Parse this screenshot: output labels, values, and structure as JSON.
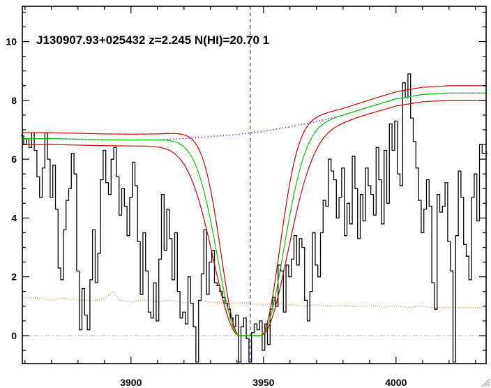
{
  "chart_data": {
    "type": "line",
    "title": "J130907.93+025432 z=2.245 N(HI)=20.70 1",
    "xlabel": "",
    "ylabel": "",
    "xlim": [
      3859,
      4034
    ],
    "ylim": [
      -0.95,
      11.2
    ],
    "x_ticks": [
      3900,
      3950,
      4000
    ],
    "y_ticks": [
      0,
      2,
      4,
      6,
      8,
      10
    ],
    "x_tick_labels": [
      "3900",
      "3950",
      "4000"
    ],
    "y_tick_labels": [
      "0",
      "2",
      "4",
      "6",
      "8",
      "10"
    ],
    "line_center_x": 3945,
    "grid": false,
    "legend": "none",
    "dla_fit": {
      "center": 3945,
      "core_halfwidth": 4,
      "width_central": 6.6,
      "width_low": 5.5,
      "width_high": 7.8,
      "continuum_scale": 1.0,
      "continuum_scale_upper": 1.03,
      "continuum_scale_lower": 0.97
    },
    "series": [
      {
        "style": "step",
        "color": "#000000",
        "points": [
          [
            3859,
            6.8
          ],
          [
            3860,
            6.5
          ],
          [
            3861,
            6.7
          ],
          [
            3862,
            6.4
          ],
          [
            3863,
            6.9
          ],
          [
            3864,
            6.3
          ],
          [
            3865,
            5.4
          ],
          [
            3866,
            4.7
          ],
          [
            3867,
            5.7
          ],
          [
            3868,
            6.9
          ],
          [
            3869,
            6.0
          ],
          [
            3870,
            4.7
          ],
          [
            3871,
            5.8
          ],
          [
            3872,
            4.3
          ],
          [
            3873,
            2.3
          ],
          [
            3874,
            1.9
          ],
          [
            3875,
            3.6
          ],
          [
            3876,
            4.6
          ],
          [
            3877,
            5.0
          ],
          [
            3878,
            6.2
          ],
          [
            3879,
            5.5
          ],
          [
            3880,
            2.2
          ],
          [
            3881,
            0.2
          ],
          [
            3882,
            1.6
          ],
          [
            3883,
            0.7
          ],
          [
            3884,
            0.2
          ],
          [
            3885,
            1.9
          ],
          [
            3886,
            3.6
          ],
          [
            3887,
            1.8
          ],
          [
            3888,
            2.8
          ],
          [
            3889,
            5.3
          ],
          [
            3890,
            6.3
          ],
          [
            3891,
            5.2
          ],
          [
            3892,
            4.8
          ],
          [
            3893,
            6.0
          ],
          [
            3894,
            6.4
          ],
          [
            3895,
            5.4
          ],
          [
            3896,
            4.1
          ],
          [
            3897,
            5.0
          ],
          [
            3898,
            4.4
          ],
          [
            3899,
            3.4
          ],
          [
            3900,
            4.7
          ],
          [
            3901,
            5.9
          ],
          [
            3902,
            5.1
          ],
          [
            3903,
            3.2
          ],
          [
            3904,
            1.4
          ],
          [
            3905,
            3.5
          ],
          [
            3906,
            2.2
          ],
          [
            3907,
            0.8
          ],
          [
            3908,
            0.6
          ],
          [
            3909,
            1.8
          ],
          [
            3910,
            0.5
          ],
          [
            3911,
            2.6
          ],
          [
            3912,
            4.8
          ],
          [
            3913,
            2.9
          ],
          [
            3914,
            4.3
          ],
          [
            3915,
            3.3
          ],
          [
            3916,
            1.9
          ],
          [
            3917,
            3.5
          ],
          [
            3918,
            1.5
          ],
          [
            3919,
            0.6
          ],
          [
            3920,
            0.8
          ],
          [
            3921,
            0.4
          ],
          [
            3922,
            2.0
          ],
          [
            3923,
            1.1
          ],
          [
            3924,
            0.3
          ],
          [
            3925,
            -0.9
          ],
          [
            3926,
            1.2
          ],
          [
            3927,
            2.1
          ],
          [
            3928,
            3.6
          ],
          [
            3929,
            1.4
          ],
          [
            3930,
            2.5
          ],
          [
            3931,
            2.9
          ],
          [
            3932,
            1.8
          ],
          [
            3933,
            1.7
          ],
          [
            3934,
            1.5
          ],
          [
            3935,
            1.3
          ],
          [
            3936,
            1.1
          ],
          [
            3937,
            0.9
          ],
          [
            3938,
            0.6
          ],
          [
            3939,
            0.3
          ],
          [
            3940,
            0.7
          ],
          [
            3941,
            -0.9
          ],
          [
            3942,
            0.3
          ],
          [
            3943,
            0.6
          ],
          [
            3944,
            -0.1
          ],
          [
            3945,
            -0.9
          ],
          [
            3946,
            0.1
          ],
          [
            3947,
            0.4
          ],
          [
            3948,
            0.2
          ],
          [
            3949,
            0.5
          ],
          [
            3950,
            -0.5
          ],
          [
            3951,
            0.4
          ],
          [
            3952,
            -0.3
          ],
          [
            3953,
            0.9
          ],
          [
            3954,
            1.3
          ],
          [
            3955,
            1.0
          ],
          [
            3956,
            2.4
          ],
          [
            3957,
            2.2
          ],
          [
            3958,
            0.8
          ],
          [
            3959,
            2.4
          ],
          [
            3960,
            2.0
          ],
          [
            3961,
            2.6
          ],
          [
            3962,
            3.4
          ],
          [
            3963,
            2.4
          ],
          [
            3964,
            3.3
          ],
          [
            3965,
            3.0
          ],
          [
            3966,
            1.2
          ],
          [
            3967,
            0.5
          ],
          [
            3968,
            1.5
          ],
          [
            3969,
            3.5
          ],
          [
            3970,
            2.4
          ],
          [
            3971,
            2.0
          ],
          [
            3972,
            3.5
          ],
          [
            3973,
            4.6
          ],
          [
            3974,
            4.4
          ],
          [
            3975,
            6.0
          ],
          [
            3976,
            5.6
          ],
          [
            3977,
            5.3
          ],
          [
            3978,
            4.0
          ],
          [
            3979,
            4.7
          ],
          [
            3980,
            5.7
          ],
          [
            3981,
            3.4
          ],
          [
            3982,
            4.5
          ],
          [
            3983,
            3.8
          ],
          [
            3984,
            6.1
          ],
          [
            3985,
            5.0
          ],
          [
            3986,
            3.3
          ],
          [
            3987,
            4.8
          ],
          [
            3988,
            3.9
          ],
          [
            3989,
            5.7
          ],
          [
            3990,
            5.1
          ],
          [
            3991,
            4.8
          ],
          [
            3992,
            4.1
          ],
          [
            3993,
            6.4
          ],
          [
            3994,
            5.3
          ],
          [
            3995,
            3.8
          ],
          [
            3996,
            6.3
          ],
          [
            3997,
            4.5
          ],
          [
            3998,
            7.2
          ],
          [
            3999,
            6.3
          ],
          [
            4000,
            7.3
          ],
          [
            4001,
            5.5
          ],
          [
            4002,
            5.1
          ],
          [
            4003,
            8.6
          ],
          [
            4004,
            8.1
          ],
          [
            4005,
            8.9
          ],
          [
            4006,
            7.4
          ],
          [
            4007,
            6.6
          ],
          [
            4008,
            5.7
          ],
          [
            4009,
            4.6
          ],
          [
            4010,
            3.5
          ],
          [
            4011,
            4.3
          ],
          [
            4012,
            5.3
          ],
          [
            4013,
            4.4
          ],
          [
            4014,
            1.8
          ],
          [
            4015,
            0.9
          ],
          [
            4016,
            4.8
          ],
          [
            4017,
            4.2
          ],
          [
            4018,
            4.4
          ],
          [
            4019,
            5.2
          ],
          [
            4020,
            3.2
          ],
          [
            4021,
            2.2
          ],
          [
            4022,
            -0.9
          ],
          [
            4023,
            3.4
          ],
          [
            4024,
            5.6
          ],
          [
            4025,
            4.7
          ],
          [
            4026,
            3.1
          ],
          [
            4027,
            2.7
          ],
          [
            4028,
            1.9
          ],
          [
            4029,
            4.7
          ],
          [
            4030,
            5.5
          ],
          [
            4031,
            3.9
          ],
          [
            4032,
            6.5
          ],
          [
            4033,
            6.2
          ],
          [
            4034,
            6.2
          ]
        ]
      },
      {
        "style": "dotted",
        "color": "#8a2be2",
        "points": [
          [
            3859,
            6.7
          ],
          [
            3870,
            6.7
          ],
          [
            3880,
            6.68
          ],
          [
            3890,
            6.66
          ],
          [
            3900,
            6.65
          ],
          [
            3910,
            6.66
          ],
          [
            3920,
            6.7
          ],
          [
            3930,
            6.77
          ],
          [
            3940,
            6.84
          ],
          [
            3950,
            6.95
          ],
          [
            3960,
            7.1
          ],
          [
            3970,
            7.28
          ],
          [
            3980,
            7.5
          ],
          [
            3990,
            7.78
          ],
          [
            4000,
            8.05
          ],
          [
            4010,
            8.2
          ],
          [
            4020,
            8.25
          ],
          [
            4034,
            8.25
          ]
        ]
      },
      {
        "style": "dotted",
        "color": "#e8842a",
        "points": [
          [
            3859,
            1.3
          ],
          [
            3865,
            1.28
          ],
          [
            3870,
            1.2
          ],
          [
            3875,
            1.27
          ],
          [
            3880,
            1.22
          ],
          [
            3885,
            1.18
          ],
          [
            3890,
            1.25
          ],
          [
            3893,
            1.5
          ],
          [
            3896,
            1.2
          ],
          [
            3900,
            1.15
          ],
          [
            3905,
            1.22
          ],
          [
            3910,
            1.15
          ],
          [
            3915,
            1.2
          ],
          [
            3920,
            1.12
          ],
          [
            3925,
            1.18
          ],
          [
            3930,
            1.15
          ],
          [
            3935,
            1.1
          ],
          [
            3940,
            1.12
          ],
          [
            3945,
            1.1
          ],
          [
            3950,
            1.05
          ],
          [
            3955,
            1.1
          ],
          [
            3960,
            1.05
          ],
          [
            3965,
            1.0
          ],
          [
            3970,
            1.05
          ],
          [
            3975,
            1.0
          ],
          [
            3980,
            1.03
          ],
          [
            3985,
            0.98
          ],
          [
            3990,
            1.02
          ],
          [
            3995,
            0.97
          ],
          [
            4000,
            1.0
          ],
          [
            4005,
            0.96
          ],
          [
            4010,
            1.0
          ],
          [
            4015,
            0.95
          ],
          [
            4020,
            0.97
          ],
          [
            4025,
            0.95
          ],
          [
            4030,
            0.96
          ],
          [
            4034,
            0.94
          ]
        ]
      }
    ],
    "zero_line": {
      "y": 0,
      "style": "dash-dot",
      "color": "#b4b4b4"
    }
  },
  "colors": {
    "fit_central": "#00cc00",
    "fit_bounds": "#cc0000",
    "marker_line": "#2a2ab4",
    "spectrum": "#000000",
    "axes": "#000000"
  },
  "icons": {
    "resize_grip": "resize-grip-icon"
  }
}
